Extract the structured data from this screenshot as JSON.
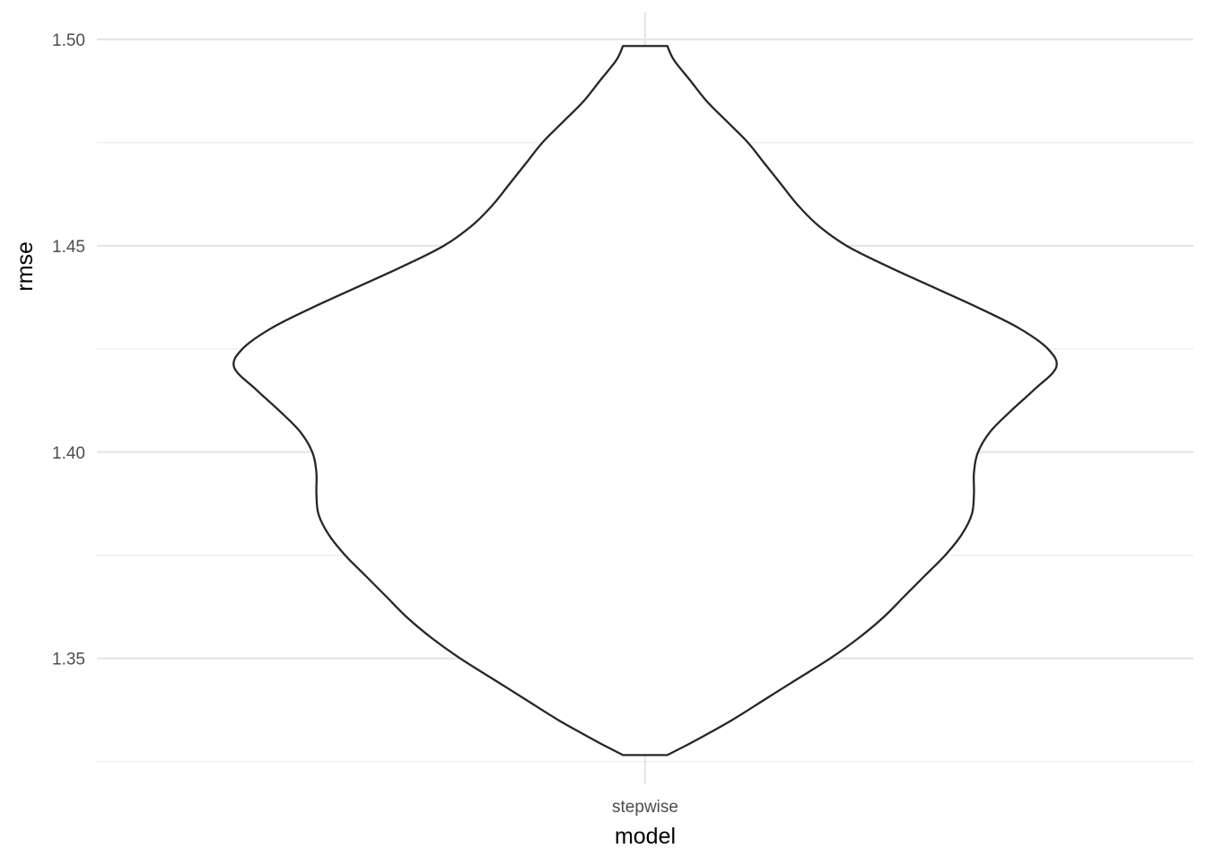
{
  "chart_data": {
    "type": "violin",
    "xlabel": "model",
    "ylabel": "rmse",
    "categories": [
      "stepwise"
    ],
    "ylim": [
      1.3195,
      1.5065
    ],
    "y_ticks": [
      "1.35",
      "1.40",
      "1.45",
      "1.50"
    ],
    "grid": true,
    "legend": "none",
    "series": [
      {
        "category": "stepwise",
        "range": [
          1.3266,
          1.4984
        ],
        "density_profile": [
          {
            "y": 1.3266,
            "w": 0.054
          },
          {
            "y": 1.33,
            "w": 0.12
          },
          {
            "y": 1.335,
            "w": 0.21
          },
          {
            "y": 1.34,
            "w": 0.29
          },
          {
            "y": 1.345,
            "w": 0.37
          },
          {
            "y": 1.35,
            "w": 0.45
          },
          {
            "y": 1.355,
            "w": 0.52
          },
          {
            "y": 1.36,
            "w": 0.58
          },
          {
            "y": 1.365,
            "w": 0.63
          },
          {
            "y": 1.37,
            "w": 0.68
          },
          {
            "y": 1.375,
            "w": 0.73
          },
          {
            "y": 1.38,
            "w": 0.77
          },
          {
            "y": 1.385,
            "w": 0.795
          },
          {
            "y": 1.39,
            "w": 0.8
          },
          {
            "y": 1.395,
            "w": 0.8
          },
          {
            "y": 1.4,
            "w": 0.81
          },
          {
            "y": 1.405,
            "w": 0.84
          },
          {
            "y": 1.41,
            "w": 0.89
          },
          {
            "y": 1.415,
            "w": 0.945
          },
          {
            "y": 1.4205,
            "w": 1.0
          },
          {
            "y": 1.425,
            "w": 0.98
          },
          {
            "y": 1.43,
            "w": 0.91
          },
          {
            "y": 1.435,
            "w": 0.81
          },
          {
            "y": 1.44,
            "w": 0.7
          },
          {
            "y": 1.445,
            "w": 0.59
          },
          {
            "y": 1.45,
            "w": 0.49
          },
          {
            "y": 1.455,
            "w": 0.42
          },
          {
            "y": 1.46,
            "w": 0.37
          },
          {
            "y": 1.465,
            "w": 0.33
          },
          {
            "y": 1.47,
            "w": 0.29
          },
          {
            "y": 1.475,
            "w": 0.25
          },
          {
            "y": 1.48,
            "w": 0.2
          },
          {
            "y": 1.485,
            "w": 0.15
          },
          {
            "y": 1.49,
            "w": 0.11
          },
          {
            "y": 1.495,
            "w": 0.07
          },
          {
            "y": 1.4984,
            "w": 0.054
          }
        ]
      }
    ]
  }
}
